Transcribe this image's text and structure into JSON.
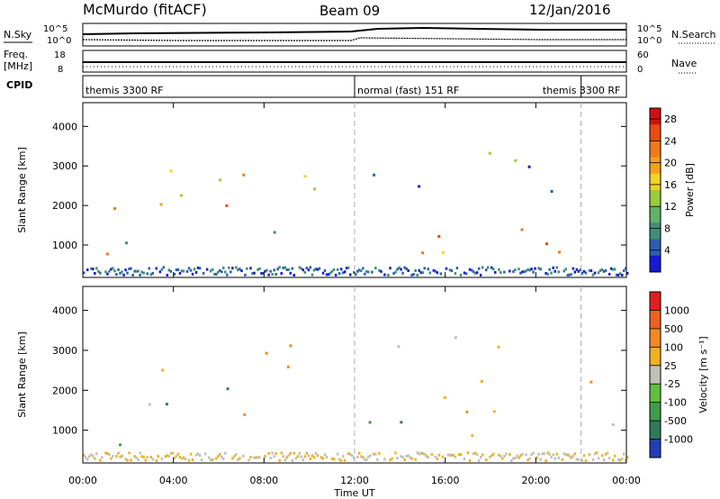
{
  "header": {
    "station": "McMurdo (fitACF)",
    "beam": "Beam 09",
    "date": "12/Jan/2016"
  },
  "status_panels": {
    "nsky_label": "N.Sky",
    "nsky_ticks": [
      "10^5",
      "10^0"
    ],
    "nsearch_label": "N.Search",
    "nsearch_ticks": [
      "10^5",
      "10^0"
    ],
    "freq_label_top": "Freq.",
    "freq_label_unit": "[MHz]",
    "freq_ticks": [
      "18",
      "8"
    ],
    "nave_label": "Nave",
    "nave_ticks": [
      "60",
      "0"
    ],
    "cpid_label": "CPID",
    "cpid_segments": [
      {
        "start_hour": 0,
        "end_hour": 12,
        "label": "themis 3300 RF"
      },
      {
        "start_hour": 12,
        "end_hour": 22,
        "label": "normal (fast) 151 RF"
      },
      {
        "start_hour": 22,
        "end_hour": 24,
        "label": "themis 3300 RF"
      }
    ]
  },
  "chart_data": [
    {
      "type": "heatmap",
      "name": "power",
      "ylabel": "Slant Range [km]",
      "xlabel": "",
      "x_ticks": [
        "00:00",
        "04:00",
        "08:00",
        "12:00",
        "16:00",
        "20:00",
        "00:00"
      ],
      "x_tick_hours": [
        0,
        4,
        8,
        12,
        16,
        20,
        24
      ],
      "xlim_hours": [
        0,
        24
      ],
      "y_ticks": [
        1000,
        2000,
        3000,
        4000
      ],
      "ylim": [
        180,
        4600
      ],
      "colorbar": {
        "label": "Power [dB]",
        "ticks": [
          "4",
          "8",
          "12",
          "16",
          "20",
          "24",
          "28"
        ],
        "range": [
          0,
          30
        ],
        "colors": [
          "#1818d8",
          "#2a5fb0",
          "#3e8e78",
          "#5fb266",
          "#9ccb3c",
          "#f2d224",
          "#f2a21c",
          "#f07a18",
          "#e84a14",
          "#d01010"
        ]
      },
      "echo_regions": [
        {
          "t0": 0.0,
          "t1": 1.4,
          "r0": 600,
          "r1": 1800,
          "level": 0.85
        },
        {
          "t0": 1.0,
          "t1": 4.2,
          "r0": 1000,
          "r1": 2200,
          "level": 0.55
        },
        {
          "t0": 2.5,
          "t1": 7.0,
          "r0": 1300,
          "r1": 3100,
          "level": 0.6
        },
        {
          "t0": 5.8,
          "t1": 7.2,
          "r0": 2200,
          "r1": 3300,
          "level": 0.45
        },
        {
          "t0": 7.0,
          "t1": 8.0,
          "r0": 1800,
          "r1": 3300,
          "level": 0.5
        },
        {
          "t0": 9.0,
          "t1": 12.0,
          "r0": 2100,
          "r1": 3300,
          "level": 0.3
        },
        {
          "t0": 8.0,
          "t1": 10.0,
          "r0": 1000,
          "r1": 1600,
          "level": 0.35
        },
        {
          "t0": 12.0,
          "t1": 16.5,
          "r0": 600,
          "r1": 1800,
          "level": 0.7
        },
        {
          "t0": 12.5,
          "t1": 19.5,
          "r0": 2300,
          "r1": 3400,
          "level": 0.25
        },
        {
          "t0": 15.5,
          "t1": 24.0,
          "r0": 600,
          "r1": 1700,
          "level": 0.65
        },
        {
          "t0": 19.5,
          "t1": 23.5,
          "r0": 2000,
          "r1": 3300,
          "level": 0.3
        }
      ]
    },
    {
      "type": "heatmap",
      "name": "velocity",
      "ylabel": "Slant Range [km]",
      "xlabel": "Time UT",
      "x_ticks": [
        "00:00",
        "04:00",
        "08:00",
        "12:00",
        "16:00",
        "20:00",
        "00:00"
      ],
      "x_tick_hours": [
        0,
        4,
        8,
        12,
        16,
        20,
        24
      ],
      "xlim_hours": [
        0,
        24
      ],
      "y_ticks": [
        1000,
        2000,
        3000,
        4000
      ],
      "ylim": [
        180,
        4600
      ],
      "colorbar": {
        "label": "Velocity [m s⁻¹]",
        "ticks": [
          "1000",
          "500",
          "100",
          "25",
          "-25",
          "-100",
          "-500",
          "-1000"
        ],
        "colors": [
          "#1f3fb8",
          "#2f7a5c",
          "#3f9c4a",
          "#60c040",
          "#c0c0b8",
          "#f0b020",
          "#f08a20",
          "#f06020",
          "#e02020"
        ]
      },
      "echo_regions": [
        {
          "t0": 0.0,
          "t1": 2.0,
          "r0": 500,
          "r1": 1700,
          "vel": "toward"
        },
        {
          "t0": 1.5,
          "t1": 4.5,
          "r0": 1200,
          "r1": 2200,
          "vel": "toward"
        },
        {
          "t0": 3.0,
          "t1": 6.5,
          "r0": 1500,
          "r1": 3200,
          "vel": "mixed"
        },
        {
          "t0": 6.5,
          "t1": 8.2,
          "r0": 1200,
          "r1": 3300,
          "vel": "away"
        },
        {
          "t0": 9.0,
          "t1": 12.0,
          "r0": 2100,
          "r1": 3300,
          "vel": "away"
        },
        {
          "t0": 12.0,
          "t1": 16.0,
          "r0": 800,
          "r1": 1900,
          "vel": "toward"
        },
        {
          "t0": 12.5,
          "t1": 19.5,
          "r0": 2600,
          "r1": 3400,
          "vel": "zero"
        },
        {
          "t0": 14.5,
          "t1": 24.0,
          "r0": 700,
          "r1": 2300,
          "vel": "away"
        }
      ]
    }
  ]
}
